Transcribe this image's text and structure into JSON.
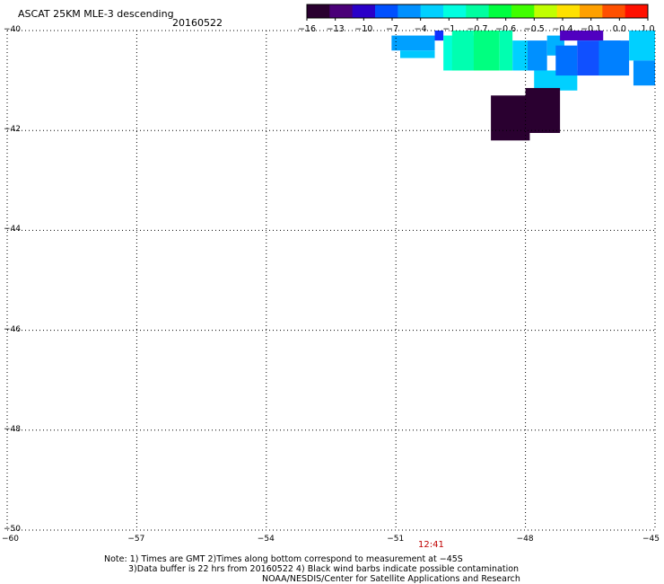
{
  "title": "ASCAT 25KM MLE-3 descending",
  "date": "20160522",
  "colorbar": {
    "labels": [
      "-16",
      "-13",
      "-10",
      "-7",
      "-4",
      "-1",
      "-0.7",
      "-0.6",
      "-0.5",
      "-0.4",
      "-0.1",
      "0.0",
      "1.0"
    ],
    "colors": [
      "#2a0030",
      "#4a0078",
      "#2a00c8",
      "#0050ff",
      "#0090ff",
      "#00d0ff",
      "#00ffe0",
      "#00ffa0",
      "#00ff40",
      "#40ff00",
      "#c0ff00",
      "#ffe000",
      "#ffa000",
      "#ff5000",
      "#ff1000"
    ]
  },
  "axes": {
    "x_ticks": [
      "-60",
      "-57",
      "-54",
      "-51",
      "-48",
      "-45"
    ],
    "y_ticks": [
      "-40",
      "-42",
      "-44",
      "-46",
      "-48",
      "-50"
    ]
  },
  "time_label": "12:41",
  "notes": {
    "line1": "Note: 1) Times are GMT 2)Times along bottom correspond to measurement at −45S",
    "line2": "3)Data buffer is 22 hrs from 20160522 4) Black wind barbs indicate possible contamination",
    "line3": "NOAA/NESDIS/Center for Satellite Applications and Research"
  },
  "chart_data": {
    "type": "heatmap",
    "title": "ASCAT 25KM MLE-3 descending",
    "xlim": [
      -60,
      -45
    ],
    "ylim": [
      -50,
      -40
    ],
    "cells": [
      {
        "lon": -51.1,
        "lat": -40.1,
        "lon2": -50.1,
        "lat2": -40.4,
        "color": "#00a0ff"
      },
      {
        "lon": -50.9,
        "lat": -40.4,
        "lon2": -50.1,
        "lat2": -40.55,
        "color": "#00c8ff"
      },
      {
        "lon": -50.1,
        "lat": -40.0,
        "lon2": -49.9,
        "lat2": -40.2,
        "color": "#1030ff"
      },
      {
        "lon": -49.9,
        "lat": -40.1,
        "lon2": -49.0,
        "lat2": -40.8,
        "color": "#00ffd8"
      },
      {
        "lon": -49.7,
        "lat": -40.0,
        "lon2": -49.2,
        "lat2": -40.8,
        "color": "#00ffb0"
      },
      {
        "lon": -49.2,
        "lat": -40.0,
        "lon2": -48.6,
        "lat2": -40.8,
        "color": "#00ff80"
      },
      {
        "lon": -48.6,
        "lat": -40.0,
        "lon2": -48.3,
        "lat2": -40.8,
        "color": "#00ffb0"
      },
      {
        "lon": -48.3,
        "lat": -40.2,
        "lon2": -47.95,
        "lat2": -40.8,
        "color": "#00d0ff"
      },
      {
        "lon": -47.95,
        "lat": -40.2,
        "lon2": -47.5,
        "lat2": -40.8,
        "color": "#0090ff"
      },
      {
        "lon": -47.8,
        "lat": -40.8,
        "lon2": -46.8,
        "lat2": -41.2,
        "color": "#00d0ff"
      },
      {
        "lon": -47.5,
        "lat": -40.1,
        "lon2": -47.1,
        "lat2": -40.5,
        "color": "#00b0ff"
      },
      {
        "lon": -47.3,
        "lat": -40.3,
        "lon2": -46.8,
        "lat2": -40.9,
        "color": "#0070ff"
      },
      {
        "lon": -47.2,
        "lat": -40.0,
        "lon2": -46.2,
        "lat2": -40.2,
        "color": "#5000c0"
      },
      {
        "lon": -46.8,
        "lat": -40.2,
        "lon2": -45.8,
        "lat2": -40.9,
        "color": "#1050ff"
      },
      {
        "lon": -46.3,
        "lat": -40.2,
        "lon2": -45.6,
        "lat2": -40.9,
        "color": "#0080ff"
      },
      {
        "lon": -45.6,
        "lat": -40.0,
        "lon2": -45.0,
        "lat2": -40.6,
        "color": "#00d0ff"
      },
      {
        "lon": -45.5,
        "lat": -40.6,
        "lon2": -45.0,
        "lat2": -41.1,
        "color": "#0090ff"
      },
      {
        "lon": -48.8,
        "lat": -41.3,
        "lon2": -47.9,
        "lat2": -42.2,
        "color": "#2a0030"
      },
      {
        "lon": -48.0,
        "lat": -41.15,
        "lon2": -47.2,
        "lat2": -42.05,
        "color": "#2a0030"
      }
    ]
  }
}
